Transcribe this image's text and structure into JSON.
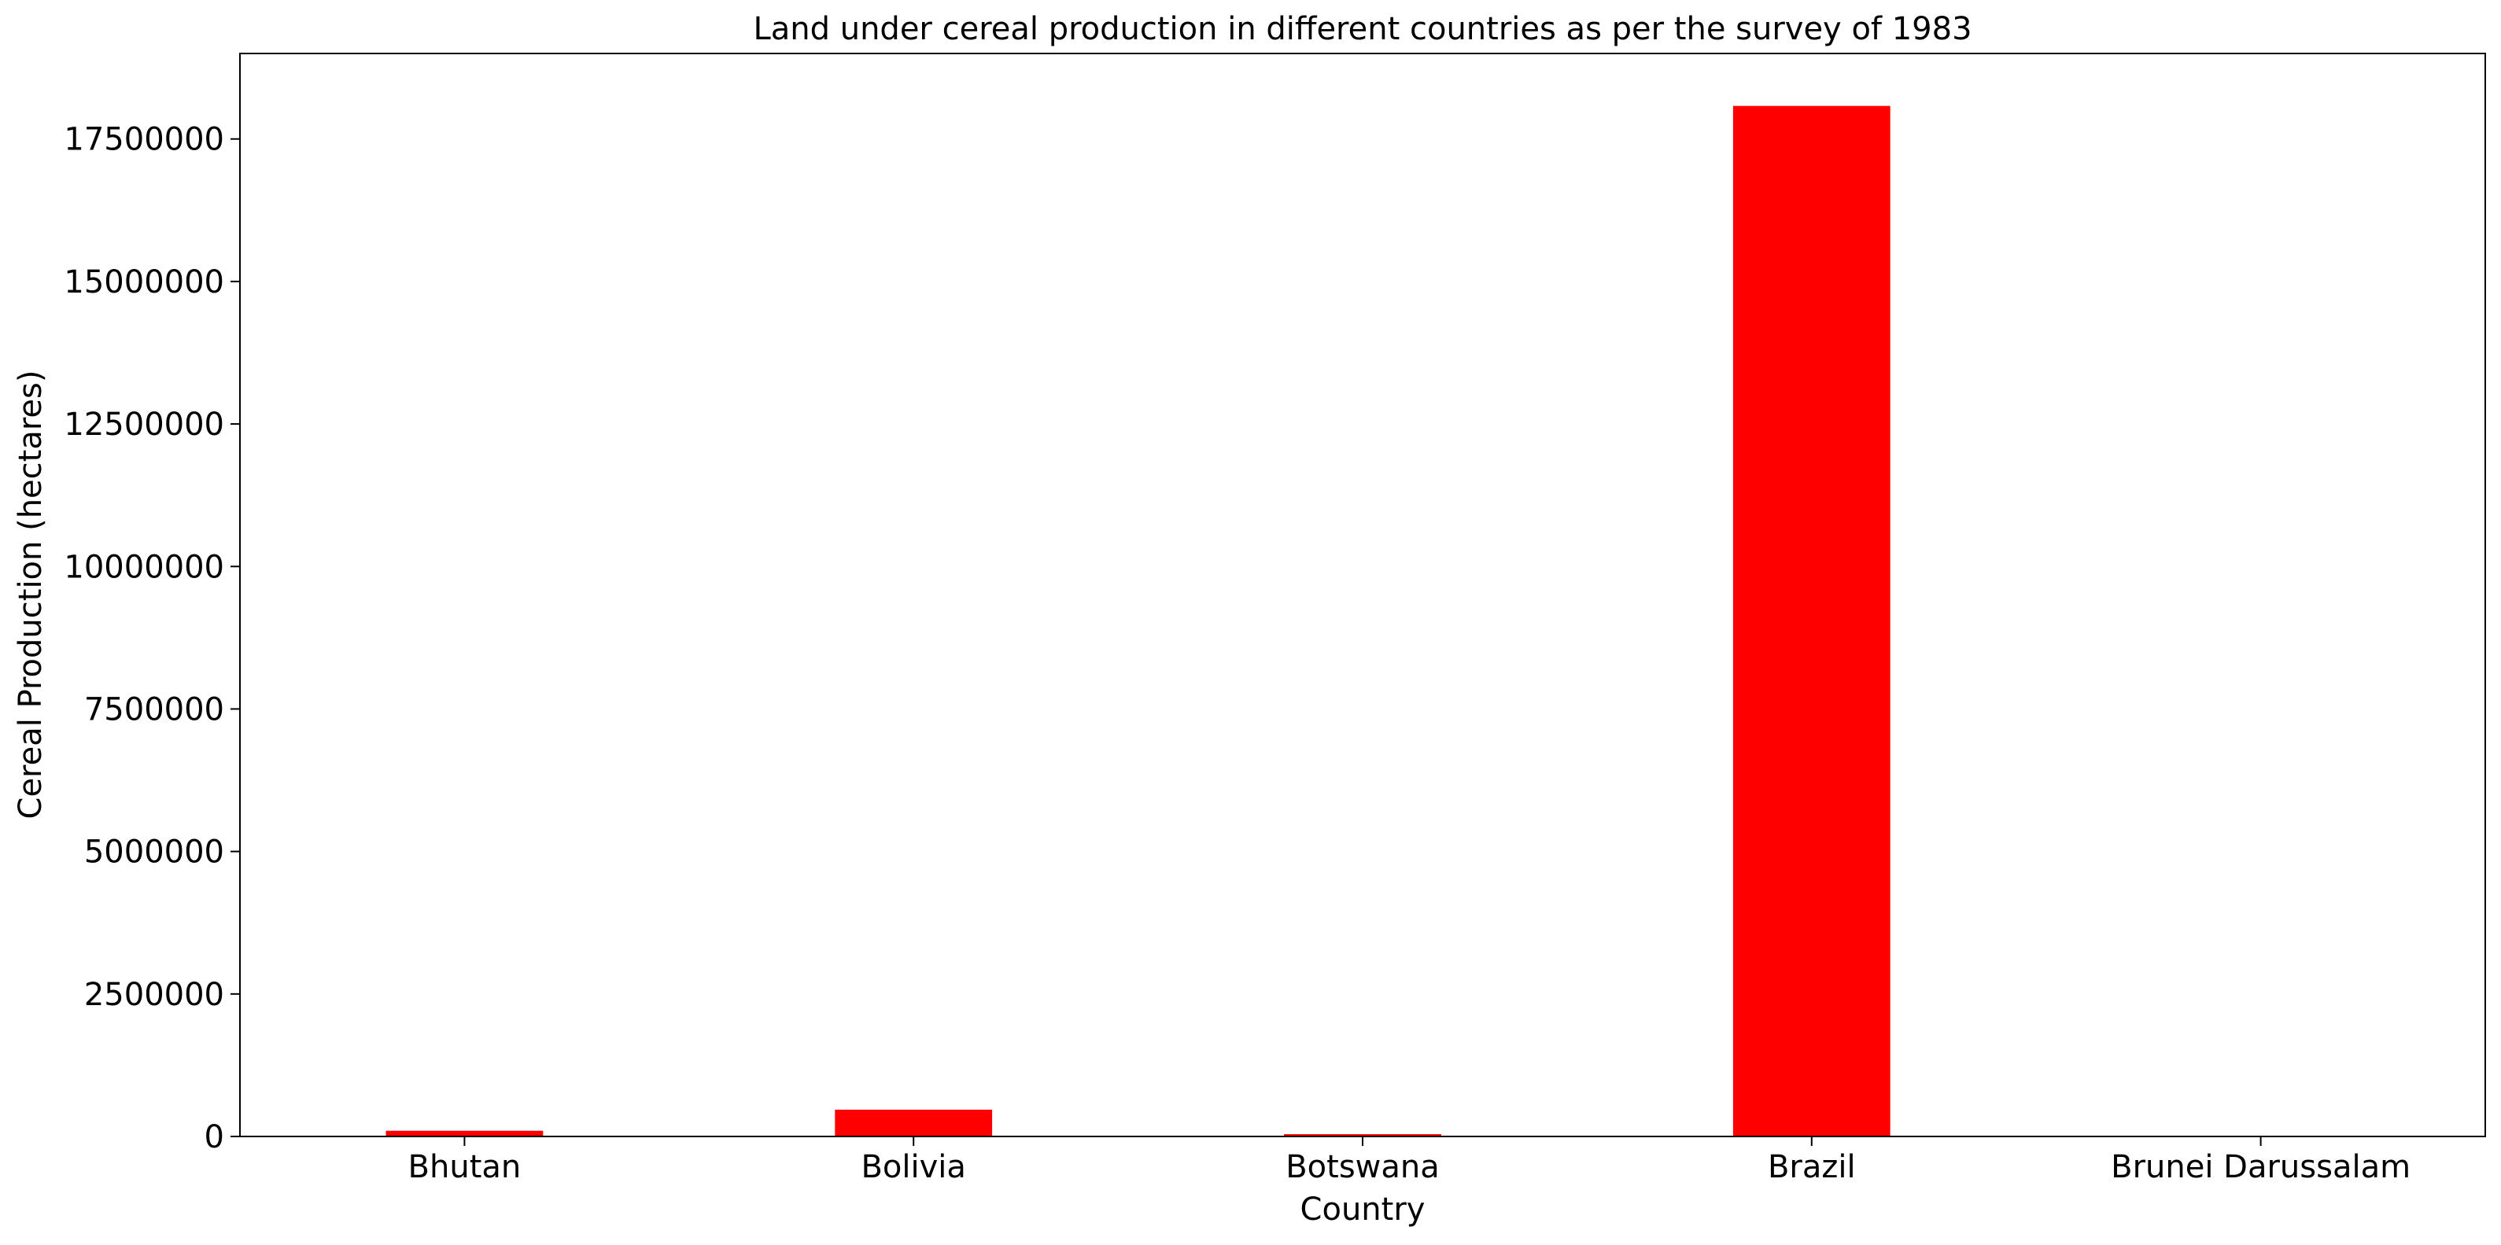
{
  "chart_data": {
    "type": "bar",
    "title": "Land under cereal  production in different countries as per the survey of 1983",
    "xlabel": "Country",
    "ylabel": "Cereal Production (hectares)",
    "categories": [
      "Bhutan",
      "Bolivia",
      "Botswana",
      "Brazil",
      "Brunei Darussalam"
    ],
    "values": [
      100000,
      470000,
      40000,
      18080000,
      2000
    ],
    "ylim": [
      0,
      19000000
    ],
    "yticks": [
      0,
      2500000,
      5000000,
      7500000,
      10000000,
      12500000,
      15000000,
      17500000
    ],
    "ytick_labels": [
      "0",
      "2500000",
      "5000000",
      "7500000",
      "10000000",
      "12500000",
      "15000000",
      "17500000"
    ],
    "grid": false,
    "legend": "none",
    "bar_color": "#ff0000"
  }
}
